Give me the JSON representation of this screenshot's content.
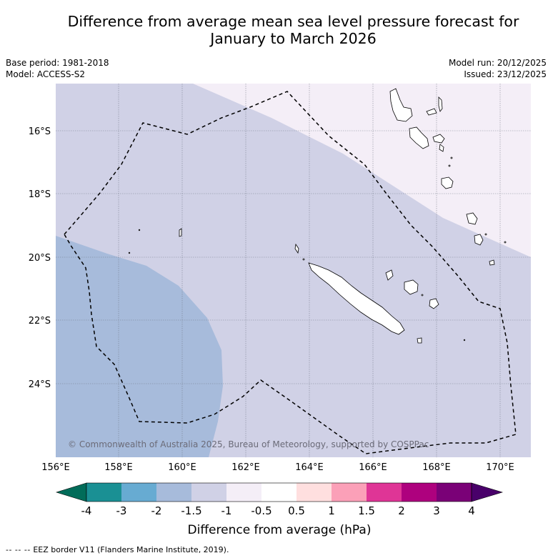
{
  "title": {
    "line1": "Difference from average mean sea level pressure forecast for",
    "line2": "January to March 2026"
  },
  "meta": {
    "base_period": "Base period: 1981-2018",
    "model": "Model: ACCESS-S2",
    "model_run": "Model run: 20/12/2025",
    "issued": "Issued: 23/12/2025"
  },
  "map": {
    "lat_labels": [
      "16°S",
      "18°S",
      "20°S",
      "22°S",
      "24°S"
    ],
    "lon_labels": [
      "156°E",
      "158°E",
      "160°E",
      "162°E",
      "164°E",
      "166°E",
      "168°E",
      "170°E"
    ],
    "copyright": "© Commonwealth of Australia 2025, Bureau of Meteorology, supported by COSPPac",
    "colors": {
      "band_neg_2_to_neg_1_5": "#a7bbdb",
      "band_neg_1_5_to_neg_1": "#d0d1e6",
      "band_neg_1_to_neg_0_5": "#f4eef7"
    }
  },
  "colorbar": {
    "ticks": [
      "-4",
      "-3",
      "-2",
      "-1.5",
      "-1",
      "-0.5",
      "0.5",
      "1",
      "1.5",
      "2",
      "3",
      "4"
    ],
    "colors": [
      "#1a9094",
      "#67abd2",
      "#a7bbdb",
      "#d0d1e6",
      "#f4eef7",
      "#ffffff",
      "#ffdfdf",
      "#fba0b8",
      "#df3596",
      "#ae017e",
      "#7a0177"
    ],
    "under_color": "#016c59",
    "over_color": "#49006a",
    "label": "Difference from average (hPa)"
  },
  "footer": {
    "dash": "--  --  --",
    "text": "EEZ border V11 (Flanders Marine Institute, 2019)."
  }
}
